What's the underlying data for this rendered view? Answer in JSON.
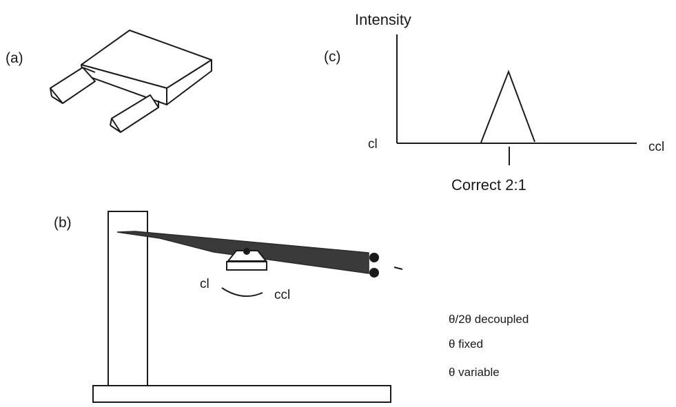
{
  "panel_a": {
    "label": "(a)"
  },
  "panel_b": {
    "label": "(b)",
    "rotation_left": "cl",
    "rotation_right": "ccl",
    "notes": [
      "θ/2θ  decoupled",
      "θ fixed",
      "θ variable"
    ]
  },
  "panel_c": {
    "label": "(c)",
    "y_label": "Intensity",
    "x_left": "cl",
    "x_right": "ccl",
    "peak_label": "Correct 2:1"
  },
  "colors": {
    "ink": "#1a1a1a",
    "beam": "#3a3a3a",
    "background": "#ffffff"
  }
}
